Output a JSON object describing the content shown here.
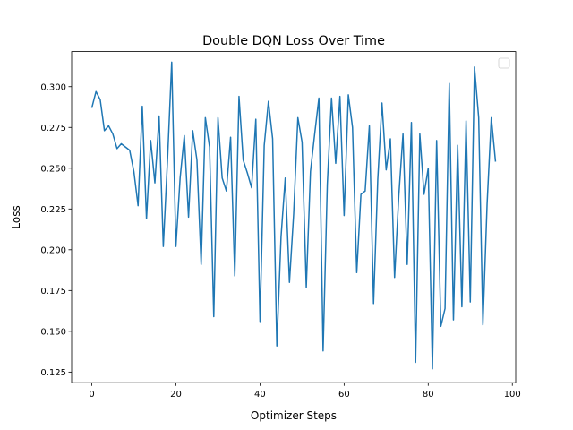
{
  "chart_data": {
    "type": "line",
    "title": "Double DQN Loss Over Time",
    "xlabel": "Optimizer Steps",
    "ylabel": "Loss",
    "xlim": [
      -4.8,
      100.8
    ],
    "ylim": [
      0.1185,
      0.3215
    ],
    "xticks": [
      0,
      20,
      40,
      60,
      80,
      100
    ],
    "yticks": [
      0.125,
      0.15,
      0.175,
      0.2,
      0.225,
      0.25,
      0.275,
      0.3
    ],
    "xtick_labels": [
      "0",
      "20",
      "40",
      "60",
      "80",
      "100"
    ],
    "ytick_labels": [
      "0.125",
      "0.150",
      "0.175",
      "0.200",
      "0.225",
      "0.250",
      "0.275",
      "0.300"
    ],
    "grid": false,
    "legend": "top-right (empty)",
    "series": [
      {
        "color": "#1f77b4",
        "x": [
          0,
          1,
          2,
          3,
          4,
          5,
          6,
          7,
          8,
          9,
          10,
          11,
          12,
          13,
          14,
          15,
          16,
          17,
          18,
          19,
          20,
          21,
          22,
          23,
          24,
          25,
          26,
          27,
          28,
          29,
          30,
          31,
          32,
          33,
          34,
          35,
          36,
          37,
          38,
          39,
          40,
          41,
          42,
          43,
          44,
          45,
          46,
          47,
          48,
          49,
          50,
          51,
          52,
          53,
          54,
          55,
          56,
          57,
          58,
          59,
          60,
          61,
          62,
          63,
          64,
          65,
          66,
          67,
          68,
          69,
          70,
          71,
          72,
          73,
          74,
          75,
          76,
          77,
          78,
          79,
          80,
          81,
          82,
          83,
          84,
          85,
          86,
          87,
          88,
          89,
          90,
          91,
          92,
          93,
          94,
          95,
          96
        ],
        "y": [
          0.287,
          0.297,
          0.292,
          0.273,
          0.276,
          0.271,
          0.262,
          0.265,
          0.263,
          0.261,
          0.248,
          0.227,
          0.288,
          0.219,
          0.267,
          0.241,
          0.282,
          0.202,
          0.255,
          0.315,
          0.202,
          0.244,
          0.27,
          0.22,
          0.273,
          0.255,
          0.191,
          0.281,
          0.263,
          0.159,
          0.281,
          0.244,
          0.236,
          0.269,
          0.184,
          0.294,
          0.255,
          0.247,
          0.238,
          0.28,
          0.156,
          0.264,
          0.291,
          0.268,
          0.141,
          0.208,
          0.244,
          0.18,
          0.222,
          0.281,
          0.266,
          0.177,
          0.248,
          0.271,
          0.293,
          0.138,
          0.24,
          0.293,
          0.253,
          0.294,
          0.221,
          0.295,
          0.275,
          0.186,
          0.234,
          0.236,
          0.276,
          0.167,
          0.243,
          0.29,
          0.249,
          0.268,
          0.183,
          0.233,
          0.271,
          0.191,
          0.278,
          0.131,
          0.271,
          0.234,
          0.25,
          0.127,
          0.267,
          0.153,
          0.164,
          0.302,
          0.157,
          0.264,
          0.165,
          0.279,
          0.168,
          0.312,
          0.281,
          0.154,
          0.228,
          0.281,
          0.254
        ]
      }
    ]
  }
}
